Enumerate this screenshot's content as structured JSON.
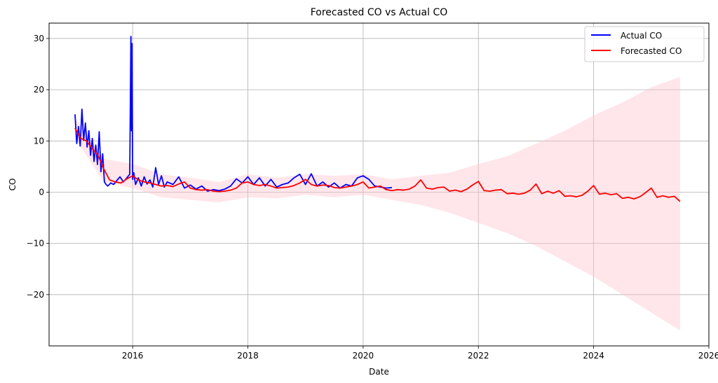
{
  "chart_data": {
    "type": "line",
    "title": "Forecasted CO vs Actual CO",
    "xlabel": "Date",
    "ylabel": "CO",
    "xlim": [
      2014.55,
      2026.0
    ],
    "ylim": [
      -30,
      33
    ],
    "x_ticks": [
      2016,
      2018,
      2020,
      2022,
      2024,
      2026
    ],
    "y_ticks": [
      -20,
      -10,
      0,
      10,
      20,
      30
    ],
    "grid": true,
    "legend_position": "top-right",
    "colors": {
      "actual": "#0000ff",
      "forecast": "#ff0000",
      "interval": "#ffc0cb"
    },
    "series": [
      {
        "name": "Actual CO",
        "x": [
          2015.0,
          2015.03,
          2015.06,
          2015.09,
          2015.12,
          2015.15,
          2015.18,
          2015.21,
          2015.24,
          2015.27,
          2015.3,
          2015.33,
          2015.36,
          2015.39,
          2015.42,
          2015.45,
          2015.48,
          2015.51,
          2015.54,
          2015.57,
          2015.62,
          2015.67,
          2015.72,
          2015.78,
          2015.84,
          2015.9,
          2015.95,
          2015.97,
          2015.98,
          2015.99,
          2016.0,
          2016.02,
          2016.05,
          2016.1,
          2016.15,
          2016.2,
          2016.25,
          2016.3,
          2016.35,
          2016.4,
          2016.45,
          2016.5,
          2016.55,
          2016.6,
          2016.7,
          2016.8,
          2016.9,
          2017.0,
          2017.1,
          2017.2,
          2017.3,
          2017.4,
          2017.5,
          2017.6,
          2017.7,
          2017.8,
          2017.9,
          2018.0,
          2018.1,
          2018.2,
          2018.3,
          2018.4,
          2018.5,
          2018.6,
          2018.7,
          2018.8,
          2018.9,
          2019.0,
          2019.1,
          2019.2,
          2019.3,
          2019.4,
          2019.5,
          2019.6,
          2019.7,
          2019.8,
          2019.9,
          2020.0,
          2020.1,
          2020.2,
          2020.3,
          2020.4,
          2020.5
        ],
        "values": [
          15.2,
          9.5,
          12.8,
          9.0,
          16.2,
          10.1,
          13.5,
          8.8,
          12.0,
          7.2,
          10.5,
          6.0,
          9.2,
          5.4,
          11.8,
          4.0,
          7.5,
          2.0,
          1.5,
          1.2,
          1.8,
          1.5,
          2.2,
          3.0,
          2.0,
          2.8,
          3.5,
          30.4,
          12.0,
          29.0,
          2.5,
          3.8,
          1.5,
          2.8,
          1.2,
          3.0,
          1.6,
          2.4,
          1.0,
          4.8,
          1.5,
          3.2,
          1.0,
          2.0,
          1.5,
          3.0,
          0.8,
          1.4,
          0.6,
          1.2,
          0.2,
          0.5,
          0.3,
          0.6,
          1.2,
          2.6,
          1.8,
          3.0,
          1.5,
          2.8,
          1.2,
          2.5,
          1.0,
          1.5,
          1.8,
          2.8,
          3.5,
          1.5,
          3.6,
          1.2,
          2.0,
          1.0,
          1.8,
          0.8,
          1.5,
          1.2,
          2.8,
          3.2,
          2.5,
          1.2,
          1.0,
          0.8,
          0.9
        ]
      },
      {
        "name": "Forecasted CO",
        "x": [
          2015.0,
          2015.1,
          2015.2,
          2015.3,
          2015.4,
          2015.5,
          2015.6,
          2015.7,
          2015.8,
          2015.9,
          2016.0,
          2016.1,
          2016.2,
          2016.3,
          2016.4,
          2016.5,
          2016.6,
          2016.7,
          2016.8,
          2016.9,
          2017.0,
          2017.1,
          2017.2,
          2017.3,
          2017.4,
          2017.5,
          2017.6,
          2017.7,
          2017.8,
          2017.9,
          2018.0,
          2018.1,
          2018.2,
          2018.3,
          2018.4,
          2018.5,
          2018.6,
          2018.7,
          2018.8,
          2018.9,
          2019.0,
          2019.1,
          2019.2,
          2019.3,
          2019.4,
          2019.5,
          2019.6,
          2019.7,
          2019.8,
          2019.9,
          2020.0,
          2020.1,
          2020.2,
          2020.3,
          2020.4,
          2020.5,
          2020.6,
          2020.7,
          2020.8,
          2020.9,
          2021.0,
          2021.1,
          2021.2,
          2021.3,
          2021.4,
          2021.5,
          2021.6,
          2021.7,
          2021.8,
          2021.9,
          2022.0,
          2022.1,
          2022.2,
          2022.3,
          2022.4,
          2022.5,
          2022.6,
          2022.7,
          2022.8,
          2022.9,
          2023.0,
          2023.1,
          2023.2,
          2023.3,
          2023.4,
          2023.5,
          2023.6,
          2023.7,
          2023.8,
          2023.9,
          2024.0,
          2024.1,
          2024.2,
          2024.3,
          2024.4,
          2024.5,
          2024.6,
          2024.7,
          2024.8,
          2024.9,
          2025.0,
          2025.1,
          2025.2,
          2025.3,
          2025.4,
          2025.5
        ],
        "values": [
          12.5,
          10.5,
          10.0,
          8.5,
          7.2,
          4.5,
          2.4,
          2.0,
          1.8,
          2.6,
          3.2,
          2.4,
          2.0,
          1.8,
          1.5,
          1.2,
          1.3,
          1.1,
          1.6,
          2.0,
          0.8,
          0.5,
          0.4,
          0.5,
          0.2,
          0.1,
          0.2,
          0.4,
          0.8,
          1.8,
          2.0,
          1.5,
          1.3,
          1.5,
          1.2,
          0.8,
          0.9,
          1.0,
          1.3,
          1.8,
          2.5,
          1.5,
          1.2,
          1.4,
          1.3,
          0.9,
          0.8,
          1.0,
          1.2,
          1.5,
          2.0,
          0.8,
          1.0,
          1.2,
          0.5,
          0.3,
          0.5,
          0.4,
          0.6,
          1.2,
          2.4,
          0.8,
          0.6,
          0.9,
          1.0,
          0.2,
          0.4,
          0.1,
          0.6,
          1.4,
          2.1,
          0.3,
          0.2,
          0.4,
          0.5,
          -0.3,
          -0.2,
          -0.4,
          -0.2,
          0.4,
          1.6,
          -0.3,
          0.2,
          -0.2,
          0.3,
          -0.8,
          -0.7,
          -0.9,
          -0.6,
          0.2,
          1.3,
          -0.4,
          -0.2,
          -0.5,
          -0.3,
          -1.2,
          -1.0,
          -1.3,
          -0.9,
          -0.1,
          0.8,
          -1.0,
          -0.7,
          -1.0,
          -0.8,
          -1.8
        ]
      }
    ],
    "confidence_interval": {
      "x": [
        2015.0,
        2015.5,
        2016.0,
        2016.5,
        2017.0,
        2017.5,
        2018.0,
        2018.5,
        2019.0,
        2019.5,
        2020.0,
        2020.5,
        2021.0,
        2021.5,
        2022.0,
        2022.5,
        2023.0,
        2023.5,
        2024.0,
        2024.5,
        2025.0,
        2025.5
      ],
      "upper": [
        14.5,
        6.5,
        5.5,
        3.5,
        2.8,
        2.0,
        3.5,
        2.8,
        3.5,
        3.2,
        3.5,
        2.5,
        3.2,
        3.8,
        5.5,
        7.0,
        9.5,
        12.0,
        15.0,
        17.5,
        20.5,
        22.5
      ],
      "lower": [
        10.5,
        2.0,
        0.8,
        -1.0,
        -1.5,
        -2.0,
        -1.0,
        -1.2,
        -0.5,
        -1.0,
        -0.5,
        -1.5,
        -2.5,
        -4.0,
        -6.0,
        -8.0,
        -10.5,
        -13.5,
        -16.5,
        -20.0,
        -23.5,
        -27.0
      ]
    }
  }
}
